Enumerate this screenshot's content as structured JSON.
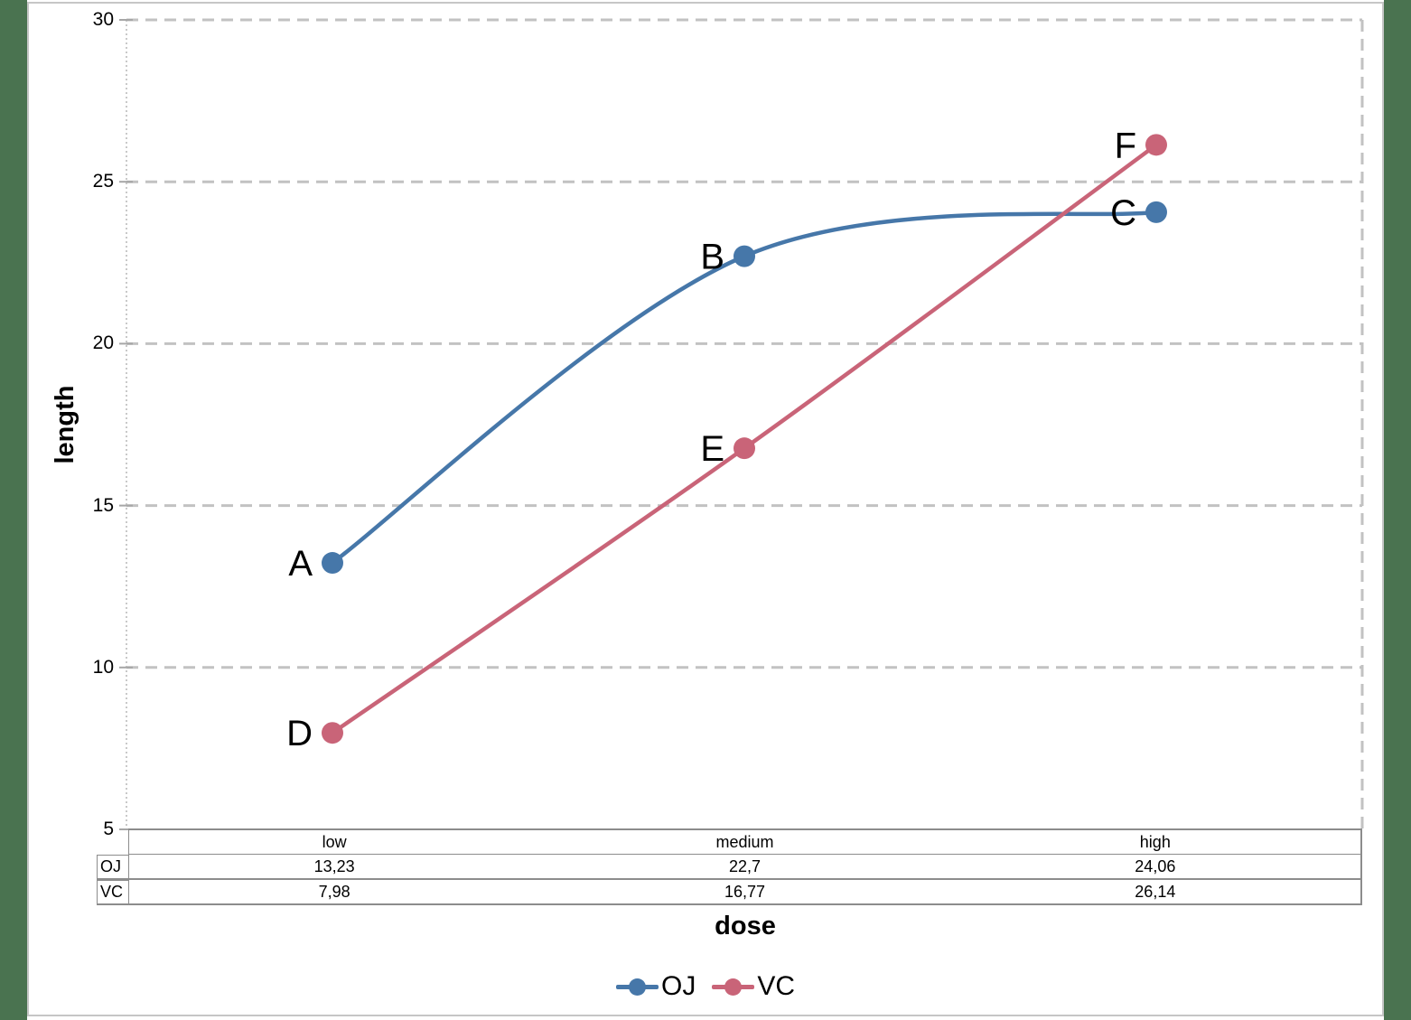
{
  "chart_data": {
    "type": "line",
    "categories": [
      "low",
      "medium",
      "high"
    ],
    "series": [
      {
        "name": "OJ",
        "color": "#4677a9",
        "values": [
          13.23,
          22.7,
          24.06
        ],
        "point_labels": [
          "A",
          "B",
          "C"
        ],
        "smooth": true
      },
      {
        "name": "VC",
        "color": "#c96478",
        "values": [
          7.98,
          16.77,
          26.14
        ],
        "point_labels": [
          "D",
          "E",
          "F"
        ],
        "smooth": true
      }
    ],
    "xlabel": "dose",
    "ylabel": "length",
    "ylim": [
      5,
      30
    ],
    "ytick_step": 5,
    "yticks": [
      30,
      25,
      20,
      15,
      10,
      5
    ],
    "ytick_labels": [
      "30",
      "25",
      "20",
      "15",
      "10",
      "5"
    ],
    "grid": "dashed-horizontal",
    "legend_position": "bottom"
  },
  "table": {
    "col_headers": [
      "low",
      "medium",
      "high"
    ],
    "rows": [
      {
        "label": "OJ",
        "values": [
          "13,23",
          "22,7",
          "24,06"
        ]
      },
      {
        "label": "VC",
        "values": [
          "7,98",
          "16,77",
          "26,14"
        ]
      }
    ]
  },
  "legend": {
    "items": [
      {
        "label": "OJ"
      },
      {
        "label": "VC"
      }
    ]
  },
  "colors": {
    "frame_strip": "#4a7350",
    "panel_border": "#c6c6c6",
    "gridline": "#c2c2c2",
    "axis_line": "#c9c9c9",
    "tick": "#a6a6a6",
    "table_border": "#8c8c8c",
    "series_oj": "#4677a9",
    "series_vc": "#c96478"
  }
}
